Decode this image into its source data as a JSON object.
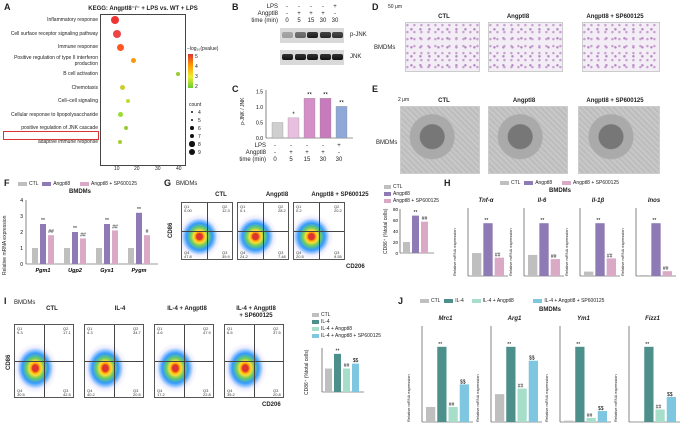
{
  "A": {
    "letter": "A",
    "title": "KEGG: Angptl8⁻/⁻ + LPS vs. WT + LPS",
    "terms": [
      "Inflammatory response",
      "Cell surface receptor signaling pathway",
      "Immune response",
      "Positive regulation of type II interferon production",
      "B cell activation",
      "Chemotaxis",
      "Cell–cell signaling",
      "Cellular response to lipopolysaccharide",
      "positive regulation of JNK cascade",
      "adaptive immune response"
    ],
    "xticks": [
      "10",
      "20",
      "30",
      "40"
    ],
    "legend_title": "−log₁₀(pvalue)",
    "legend_vals": [
      "5",
      "4",
      "3",
      "2"
    ],
    "count_title": "count",
    "counts": [
      "4",
      "5",
      "6",
      "7",
      "8",
      "9"
    ]
  },
  "B": {
    "letter": "B",
    "rows": [
      "LPS",
      "Angptl8",
      "time (min)"
    ],
    "lps": [
      "-",
      "-",
      "-",
      "-",
      "+"
    ],
    "angptl8": [
      "-",
      "+",
      "+",
      "+",
      "-"
    ],
    "time": [
      "0",
      "5",
      "15",
      "30",
      "30"
    ],
    "pjnk": "p-JNK",
    "jnk": "JNK"
  },
  "C": {
    "letter": "C",
    "ylabel": "p-JNK / JNK",
    "yticks": [
      "0.0",
      "0.5",
      "1.0",
      "1.5"
    ],
    "lps": [
      "-",
      "-",
      "-",
      "-",
      "+"
    ],
    "angptl8": [
      "-",
      "+",
      "+",
      "+",
      "-"
    ],
    "time": [
      "0",
      "5",
      "15",
      "30",
      "30"
    ],
    "rows": [
      "LPS",
      "Angptl8",
      "time (min)"
    ],
    "stars": [
      "",
      "*",
      "**",
      "**",
      "**"
    ]
  },
  "D": {
    "letter": "D",
    "scale": "50 μm",
    "cols": [
      "CTL",
      "Angptl8",
      "Angptl8 + SP600125"
    ],
    "row": "BMDMs"
  },
  "E": {
    "letter": "E",
    "scale": "2 μm",
    "cols": [
      "CTL",
      "Angptl8",
      "Angptl8 + SP600125"
    ],
    "row": "BMDMs"
  },
  "F": {
    "letter": "F",
    "legend": [
      "CTL",
      "Angptl8",
      "Angptl8 + SP600125"
    ],
    "title": "BMDMs",
    "ylabel": "Relative mRNA expression",
    "yticks": [
      "0",
      "1",
      "2",
      "3",
      "4"
    ],
    "genes": [
      "Pgm1",
      "Ugp2",
      "Gys1",
      "Pygm"
    ],
    "stars": [
      "**",
      "##",
      "**",
      "##",
      "**",
      "##",
      "**",
      "#"
    ]
  },
  "G": {
    "letter": "G",
    "row": "BMDMs",
    "cols": [
      "CTL",
      "Angptl8",
      "Angptl8 + SP600125"
    ],
    "xlabel": "CD206",
    "ylabel": "CD86",
    "quads": [
      [
        "Q1",
        "Q2",
        "Q4",
        "Q3",
        "0.00",
        "12.3",
        "47.8",
        "39.9"
      ],
      [
        "Q1",
        "Q2",
        "Q4",
        "Q3",
        "0.1",
        "28.2",
        "24.2",
        "7.48"
      ],
      [
        "Q1",
        "Q2",
        "Q4",
        "Q3",
        "0.2",
        "20.2",
        "20.5",
        "9.55"
      ]
    ],
    "bar_ylabel": "CD86⁺ (%total cells)",
    "yticks": [
      "0",
      "20",
      "40",
      "60",
      "80"
    ],
    "legend": [
      "CTL",
      "Angptl8",
      "Angptl8 + SP600125"
    ],
    "stars": [
      "**",
      "##"
    ]
  },
  "H": {
    "letter": "H",
    "legend": [
      "CTL",
      "Angptl8",
      "Angptl8 + SP600125"
    ],
    "title": "BMDMs",
    "genes": [
      "Tnf-α",
      "Il-6",
      "Il-1β",
      "Inos"
    ],
    "ylabel": "Relative mRNA expression",
    "stars": [
      "**",
      "##",
      "**",
      "#",
      "**",
      "##",
      "**",
      "##"
    ]
  },
  "I": {
    "letter": "I",
    "row": "BMDMs",
    "cols": [
      "CTL",
      "IL-4",
      "IL-4 + Angptl8",
      "IL-4 + Angptl8\n+ SP600125"
    ],
    "xlabel": "CD206",
    "ylabel": "CD86",
    "quads": [
      [
        "Q1",
        "Q2",
        "Q4",
        "Q3",
        "9.3",
        "17.1",
        "30.5",
        "42.5"
      ],
      [
        "Q1",
        "Q2",
        "Q4",
        "Q3",
        "4.3",
        "34.7",
        "40.2",
        "20.5"
      ],
      [
        "Q1",
        "Q2",
        "Q4",
        "Q3",
        "4.6",
        "47.9",
        "17.2",
        "22.8"
      ],
      [
        "Q1",
        "Q2",
        "Q4",
        "Q3",
        "6.5",
        "37.5",
        "35.2",
        "20.8"
      ]
    ],
    "bar_ylabel": "CD86⁺ (%total cells)",
    "legend": [
      "CTL",
      "IL-4",
      "IL-4 + Angptl8",
      "IL-4 + Angptl8 + SP600125"
    ],
    "stars": [
      "**",
      "##",
      "$$"
    ]
  },
  "J": {
    "letter": "J",
    "legend": [
      "CTL",
      "IL-4",
      "IL-4 + Angptl8",
      "IL-4 + Angptl8 + SP600125"
    ],
    "title": "BMDMs",
    "genes": [
      "Mrc1",
      "Arg1",
      "Ym1",
      "Fizz1"
    ],
    "ylabel": "Relative mRNA expression",
    "stars": [
      "**",
      "##",
      "$$"
    ]
  },
  "colors": {
    "ctl": "#bfbfbf",
    "angptl8": "#8e7bb5",
    "sp": "#d9a9c6",
    "il4": "#4d8f8a",
    "il4a": "#a7dec9",
    "il4sp": "#7fc6e0"
  }
}
